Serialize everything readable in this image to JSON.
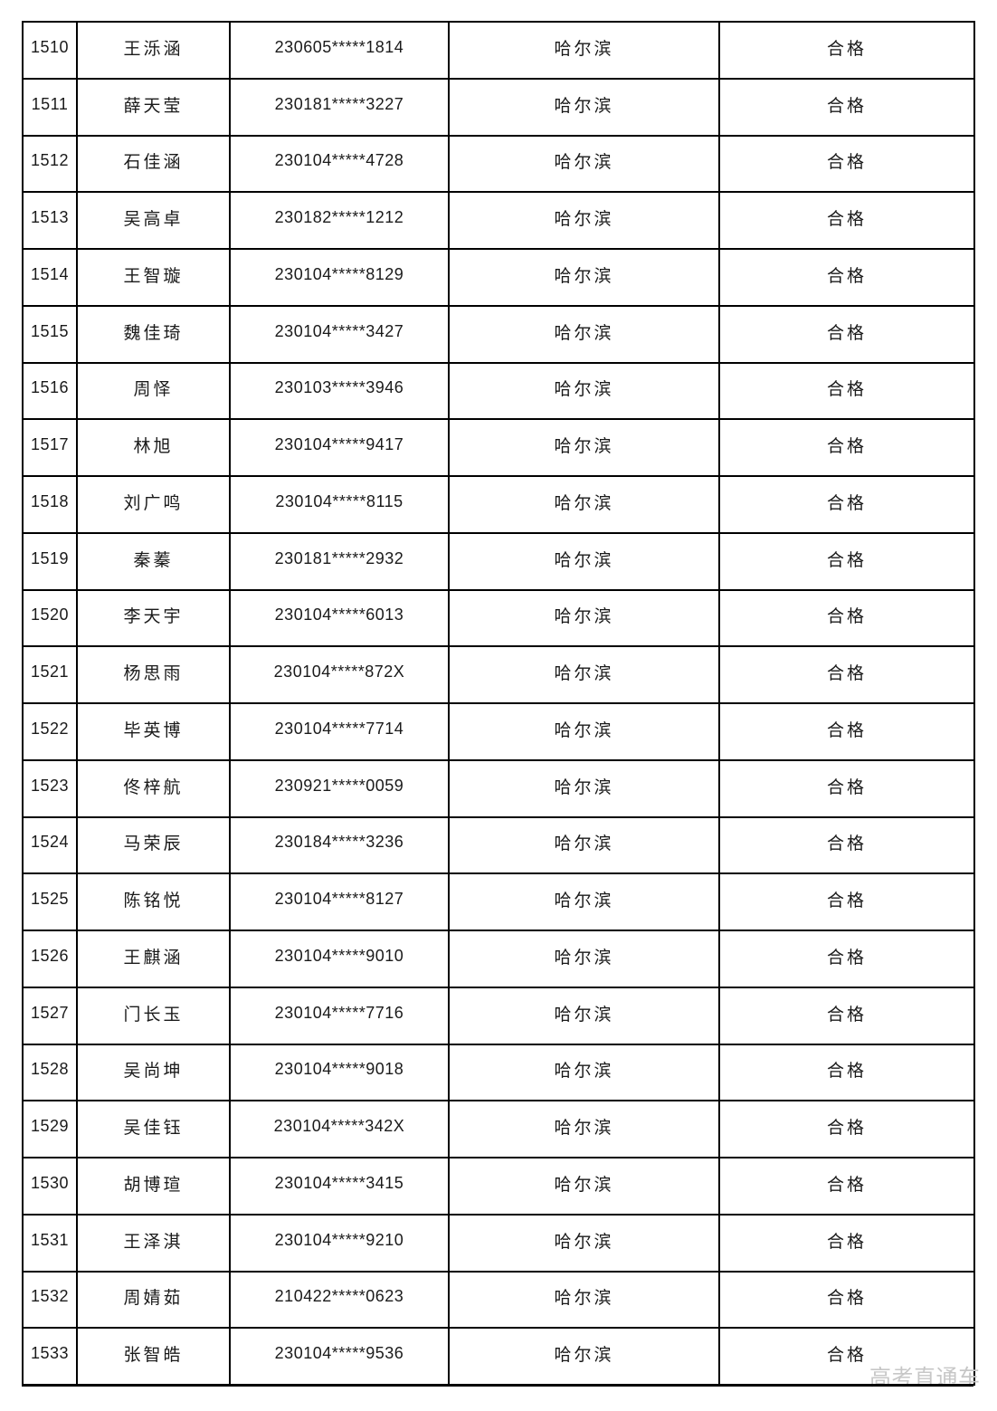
{
  "page": {
    "background_color": "#ffffff",
    "border_color": "#000000",
    "text_color": "#1a1a1a"
  },
  "watermark": {
    "text": "高考直通车",
    "color": "#c7c7c7"
  },
  "table": {
    "rows": [
      {
        "no": "1510",
        "name": "王泺涵",
        "id": "230605*****1814",
        "city": "哈尔滨",
        "status": "合格"
      },
      {
        "no": "1511",
        "name": "薛天莹",
        "id": "230181*****3227",
        "city": "哈尔滨",
        "status": "合格"
      },
      {
        "no": "1512",
        "name": "石佳涵",
        "id": "230104*****4728",
        "city": "哈尔滨",
        "status": "合格"
      },
      {
        "no": "1513",
        "name": "吴高卓",
        "id": "230182*****1212",
        "city": "哈尔滨",
        "status": "合格"
      },
      {
        "no": "1514",
        "name": "王智璇",
        "id": "230104*****8129",
        "city": "哈尔滨",
        "status": "合格"
      },
      {
        "no": "1515",
        "name": "魏佳琦",
        "id": "230104*****3427",
        "city": "哈尔滨",
        "status": "合格"
      },
      {
        "no": "1516",
        "name": "周怿",
        "id": "230103*****3946",
        "city": "哈尔滨",
        "status": "合格"
      },
      {
        "no": "1517",
        "name": "林旭",
        "id": "230104*****9417",
        "city": "哈尔滨",
        "status": "合格"
      },
      {
        "no": "1518",
        "name": "刘广鸣",
        "id": "230104*****8115",
        "city": "哈尔滨",
        "status": "合格"
      },
      {
        "no": "1519",
        "name": "秦蓁",
        "id": "230181*****2932",
        "city": "哈尔滨",
        "status": "合格"
      },
      {
        "no": "1520",
        "name": "李天宇",
        "id": "230104*****6013",
        "city": "哈尔滨",
        "status": "合格"
      },
      {
        "no": "1521",
        "name": "杨思雨",
        "id": "230104*****872X",
        "city": "哈尔滨",
        "status": "合格"
      },
      {
        "no": "1522",
        "name": "毕英博",
        "id": "230104*****7714",
        "city": "哈尔滨",
        "status": "合格"
      },
      {
        "no": "1523",
        "name": "佟梓航",
        "id": "230921*****0059",
        "city": "哈尔滨",
        "status": "合格"
      },
      {
        "no": "1524",
        "name": "马荣辰",
        "id": "230184*****3236",
        "city": "哈尔滨",
        "status": "合格"
      },
      {
        "no": "1525",
        "name": "陈铭悦",
        "id": "230104*****8127",
        "city": "哈尔滨",
        "status": "合格"
      },
      {
        "no": "1526",
        "name": "王麒涵",
        "id": "230104*****9010",
        "city": "哈尔滨",
        "status": "合格"
      },
      {
        "no": "1527",
        "name": "门长玉",
        "id": "230104*****7716",
        "city": "哈尔滨",
        "status": "合格"
      },
      {
        "no": "1528",
        "name": "吴尚坤",
        "id": "230104*****9018",
        "city": "哈尔滨",
        "status": "合格"
      },
      {
        "no": "1529",
        "name": "吴佳钰",
        "id": "230104*****342X",
        "city": "哈尔滨",
        "status": "合格"
      },
      {
        "no": "1530",
        "name": "胡博瑄",
        "id": "230104*****3415",
        "city": "哈尔滨",
        "status": "合格"
      },
      {
        "no": "1531",
        "name": "王泽淇",
        "id": "230104*****9210",
        "city": "哈尔滨",
        "status": "合格"
      },
      {
        "no": "1532",
        "name": "周婧茹",
        "id": "210422*****0623",
        "city": "哈尔滨",
        "status": "合格"
      },
      {
        "no": "1533",
        "name": "张智皓",
        "id": "230104*****9536",
        "city": "哈尔滨",
        "status": "合格"
      }
    ]
  }
}
